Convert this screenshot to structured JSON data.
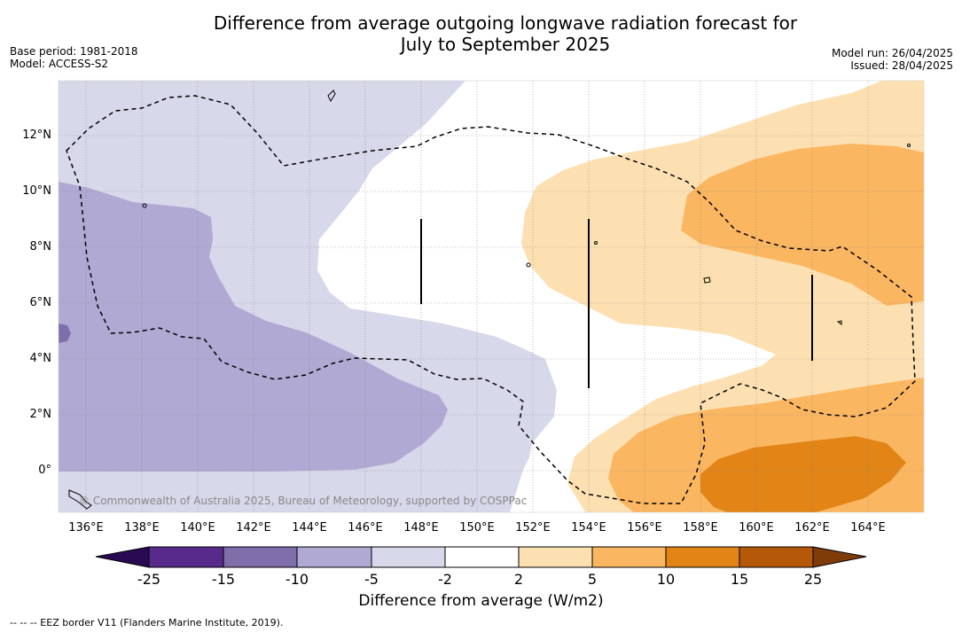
{
  "title_line1": "Difference from average outgoing longwave radiation forecast for",
  "title_line2": "July to September 2025",
  "meta": {
    "base_period": "Base period: 1981-2018",
    "model": "Model: ACCESS-S2",
    "model_run": "Model run: 26/04/2025",
    "issued": "Issued: 28/04/2025"
  },
  "map": {
    "longitude_labels": [
      "136°E",
      "138°E",
      "140°E",
      "142°E",
      "144°E",
      "146°E",
      "148°E",
      "150°E",
      "152°E",
      "154°E",
      "156°E",
      "158°E",
      "160°E",
      "162°E",
      "164°E"
    ],
    "latitude_labels": [
      "12°N",
      "10°N",
      "8°N",
      "6°N",
      "4°N",
      "2°N",
      "0°"
    ],
    "copyright": "© Commonwealth of Australia 2025, Bureau of Meteorology, supported by COSPPac"
  },
  "colorbar": {
    "labels": [
      "-25",
      "-15",
      "-10",
      "-5",
      "-2",
      "2",
      "5",
      "10",
      "15",
      "25"
    ],
    "colors": [
      "#2a0a52",
      "#582a8c",
      "#7f6eaa",
      "#b0a9d3",
      "#d7d8ea",
      "#ffffff",
      "#fde0b2",
      "#fbb661",
      "#e28416",
      "#b35909",
      "#7f3b08"
    ],
    "title": "Difference from average (W/m2)"
  },
  "footnote": "-- -- -- EEZ border V11 (Flanders Marine Institute, 2019)."
}
